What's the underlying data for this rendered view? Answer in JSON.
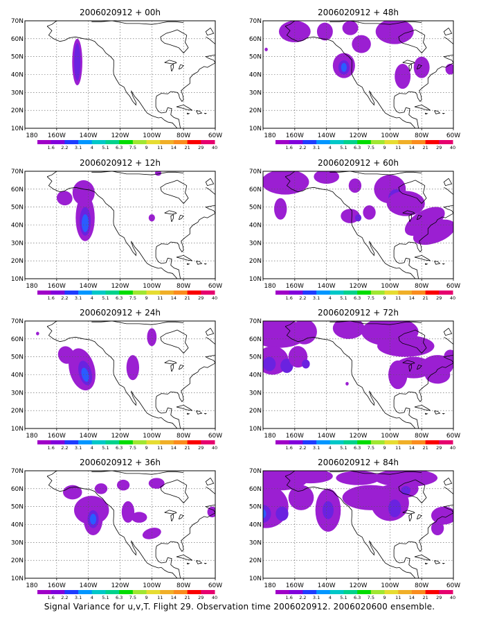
{
  "figure": {
    "caption": "Signal Variance for u,v,T. Flight 29. Observation time 2006020912. 2006020600 ensemble."
  },
  "axes": {
    "lon_labels": [
      "180",
      "160W",
      "140W",
      "120W",
      "100W",
      "80W",
      "60W"
    ],
    "lat_labels": [
      "10N",
      "20N",
      "30N",
      "40N",
      "50N",
      "60N",
      "70N"
    ]
  },
  "colorbar": {
    "labels": [
      "1.6",
      "2.2",
      "3.1",
      "4",
      "5.1",
      "6.3",
      "7.5",
      "9",
      "11",
      "14",
      "21",
      "29",
      "40"
    ],
    "colors": [
      "#a000c8",
      "#8200dc",
      "#1e3cff",
      "#0096ff",
      "#00c8c8",
      "#00d28c",
      "#00dc00",
      "#a0e632",
      "#e6dc32",
      "#f0af28",
      "#fa8c1e",
      "#fa0000",
      "#e6006e"
    ]
  },
  "colors": {
    "fill_low": "#9b1fd2",
    "fill_mid": "#6a22e0",
    "fill_blue": "#2a5cff",
    "fill_cyan": "#00b4dc",
    "coast": "#000000",
    "grid": "#555555",
    "frame": "#000000"
  },
  "panels": [
    {
      "title": "2006020912 + 00h",
      "lead_hours": 0
    },
    {
      "title": "2006020912 + 12h",
      "lead_hours": 12
    },
    {
      "title": "2006020912 + 24h",
      "lead_hours": 24
    },
    {
      "title": "2006020912 + 36h",
      "lead_hours": 36
    },
    {
      "title": "2006020912 + 48h",
      "lead_hours": 48
    },
    {
      "title": "2006020912 + 60h",
      "lead_hours": 60
    },
    {
      "title": "2006020912 + 72h",
      "lead_hours": 72
    },
    {
      "title": "2006020912 + 84h",
      "lead_hours": 84
    }
  ]
}
